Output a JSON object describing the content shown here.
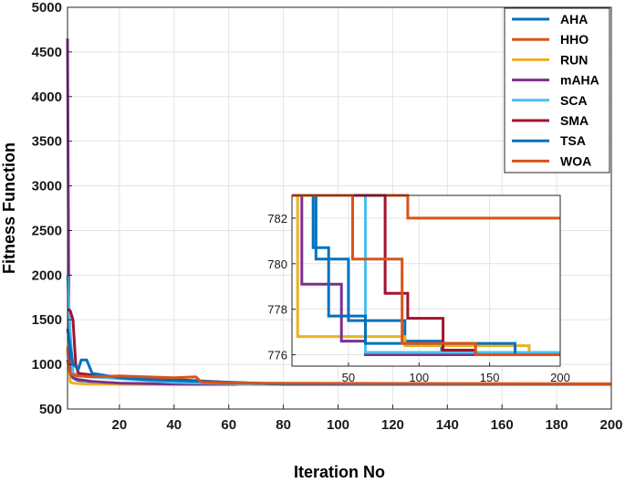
{
  "chart_data": {
    "type": "line",
    "xlabel": "Iteration No",
    "ylabel": "Fitness Function",
    "xlim": [
      1,
      200
    ],
    "ylim": [
      500,
      5000
    ],
    "xticks": [
      20,
      40,
      60,
      80,
      100,
      120,
      140,
      160,
      180,
      200
    ],
    "yticks": [
      500,
      1000,
      1500,
      2000,
      2500,
      3000,
      3500,
      4000,
      4500,
      5000
    ],
    "grid": true,
    "legend_position": "top-right",
    "series": [
      {
        "name": "AHA",
        "color": "#0072BD",
        "x": [
          1,
          2,
          3,
          4,
          5,
          8,
          10,
          20,
          200
        ],
        "y": [
          1180,
          900,
          850,
          830,
          820,
          815,
          790,
          778,
          776
        ]
      },
      {
        "name": "HHO",
        "color": "#D95319",
        "x": [
          1,
          2,
          3,
          5,
          10,
          20,
          30,
          40,
          60,
          80,
          90,
          91,
          200
        ],
        "y": [
          1150,
          940,
          900,
          880,
          860,
          850,
          830,
          800,
          790,
          782,
          782,
          782,
          782
        ]
      },
      {
        "name": "RUN",
        "color": "#EDB120",
        "x": [
          1,
          2,
          3,
          5,
          8,
          10,
          12,
          20,
          200
        ],
        "y": [
          1200,
          800,
          790,
          785,
          780,
          777,
          777,
          777,
          777
        ]
      },
      {
        "name": "mAHA",
        "color": "#7E2F8E",
        "x": [
          1,
          1.5,
          2,
          3,
          5,
          10,
          15,
          20,
          30,
          40,
          60,
          200
        ],
        "y": [
          4650,
          1600,
          900,
          850,
          830,
          810,
          800,
          790,
          785,
          779,
          776,
          776
        ]
      },
      {
        "name": "SCA",
        "color": "#4DBEEE",
        "x": [
          1,
          2,
          3,
          5,
          10,
          20,
          30,
          40,
          60,
          62,
          64,
          200
        ],
        "y": [
          2000,
          1350,
          900,
          870,
          860,
          840,
          820,
          800,
          784,
          782,
          776,
          776
        ]
      },
      {
        "name": "SMA",
        "color": "#A2142F",
        "x": [
          1,
          2,
          3,
          4,
          5,
          10,
          20,
          30,
          40,
          60,
          80,
          200
        ],
        "y": [
          1620,
          1600,
          1500,
          1000,
          900,
          880,
          860,
          840,
          830,
          800,
          779,
          776
        ]
      },
      {
        "name": "TSA",
        "color": "#0072BD",
        "x": [
          1,
          3,
          5,
          6,
          8,
          10,
          20,
          30,
          40,
          60,
          80,
          200
        ],
        "y": [
          1400,
          1000,
          950,
          1050,
          1050,
          900,
          850,
          830,
          820,
          800,
          778,
          776
        ]
      },
      {
        "name": "WOA",
        "color": "#D95319",
        "x": [
          1,
          2,
          3,
          5,
          10,
          20,
          30,
          40,
          48,
          50,
          60,
          200
        ],
        "y": [
          1050,
          900,
          880,
          870,
          860,
          870,
          860,
          850,
          860,
          800,
          790,
          782
        ]
      }
    ],
    "inset": {
      "xlim": [
        10,
        200
      ],
      "ylim": [
        775.5,
        783
      ],
      "xticks": [
        50,
        100,
        150,
        200
      ],
      "yticks": [
        776,
        778,
        780,
        782
      ],
      "series": [
        {
          "name": "AHA",
          "color": "#0072BD",
          "x": [
            10,
            27,
            27,
            50,
            50,
            90,
            90,
            116,
            116,
            200
          ],
          "y": [
            783,
            783,
            780.2,
            780.2,
            777.5,
            777.5,
            776.6,
            776.6,
            776,
            776
          ]
        },
        {
          "name": "HHO",
          "color": "#D95319",
          "x": [
            10,
            92,
            92,
            200
          ],
          "y": [
            783,
            783,
            782,
            782
          ]
        },
        {
          "name": "RUN",
          "color": "#EDB120",
          "x": [
            10,
            14,
            14,
            90,
            90,
            178,
            178,
            200
          ],
          "y": [
            783,
            783,
            776.8,
            776.8,
            776.4,
            776.4,
            776,
            776
          ]
        },
        {
          "name": "mAHA",
          "color": "#7E2F8E",
          "x": [
            10,
            17,
            17,
            45,
            45,
            62,
            62,
            200
          ],
          "y": [
            783,
            783,
            779.1,
            779.1,
            776.6,
            776.6,
            776,
            776
          ]
        },
        {
          "name": "SCA",
          "color": "#4DBEEE",
          "x": [
            10,
            62,
            62,
            200
          ],
          "y": [
            783,
            783,
            776.1,
            776.1
          ]
        },
        {
          "name": "SMA",
          "color": "#A2142F",
          "x": [
            10,
            76,
            76,
            92,
            92,
            117,
            117,
            140,
            140,
            200
          ],
          "y": [
            783,
            783,
            778.7,
            778.7,
            777.6,
            777.6,
            776.2,
            776.2,
            776,
            776
          ]
        },
        {
          "name": "TSA",
          "color": "#0072BD",
          "x": [
            10,
            25,
            25,
            36,
            36,
            62,
            62,
            168,
            168,
            200
          ],
          "y": [
            783,
            783,
            780.7,
            780.7,
            777.7,
            777.7,
            776.5,
            776.5,
            776,
            776
          ]
        },
        {
          "name": "WOA",
          "color": "#D95319",
          "x": [
            10,
            53,
            53,
            88,
            88,
            140,
            140,
            200
          ],
          "y": [
            783,
            783,
            780.2,
            780.2,
            776.5,
            776.5,
            776,
            776
          ]
        }
      ]
    }
  }
}
